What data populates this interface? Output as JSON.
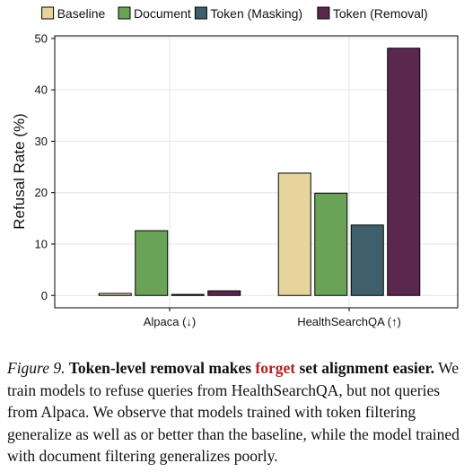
{
  "chart_data": {
    "type": "bar",
    "categories": [
      "Alpaca (↓)",
      "HealthSearchQA (↑)"
    ],
    "series": [
      {
        "name": "Baseline",
        "color": "#e6d49c",
        "values": [
          0.4,
          23.8
        ]
      },
      {
        "name": "Document",
        "color": "#6aa357",
        "values": [
          12.6,
          19.9
        ]
      },
      {
        "name": "Token (Masking)",
        "color": "#3f5f6c",
        "values": [
          0.2,
          13.7
        ]
      },
      {
        "name": "Token (Removal)",
        "color": "#5a284f",
        "values": [
          0.9,
          48.1
        ]
      }
    ],
    "ylabel": "Refusal Rate (%)",
    "xlabel": "",
    "ylim": [
      -2.4,
      50.5
    ],
    "yticks": [
      0,
      10,
      20,
      30,
      40,
      50
    ],
    "grid": true,
    "legend_position": "top"
  },
  "caption": {
    "figure_label": "Figure 9.",
    "title_before": "Token-level removal makes",
    "title_highlight": "forget",
    "title_after": "set alignment easier.",
    "body": "We train models to refuse queries from HealthSearchQA, but not queries from Alpaca. We observe that models trained with token filtering generalize as well as or better than the baseline, while the model trained with document filtering generalizes poorly."
  }
}
